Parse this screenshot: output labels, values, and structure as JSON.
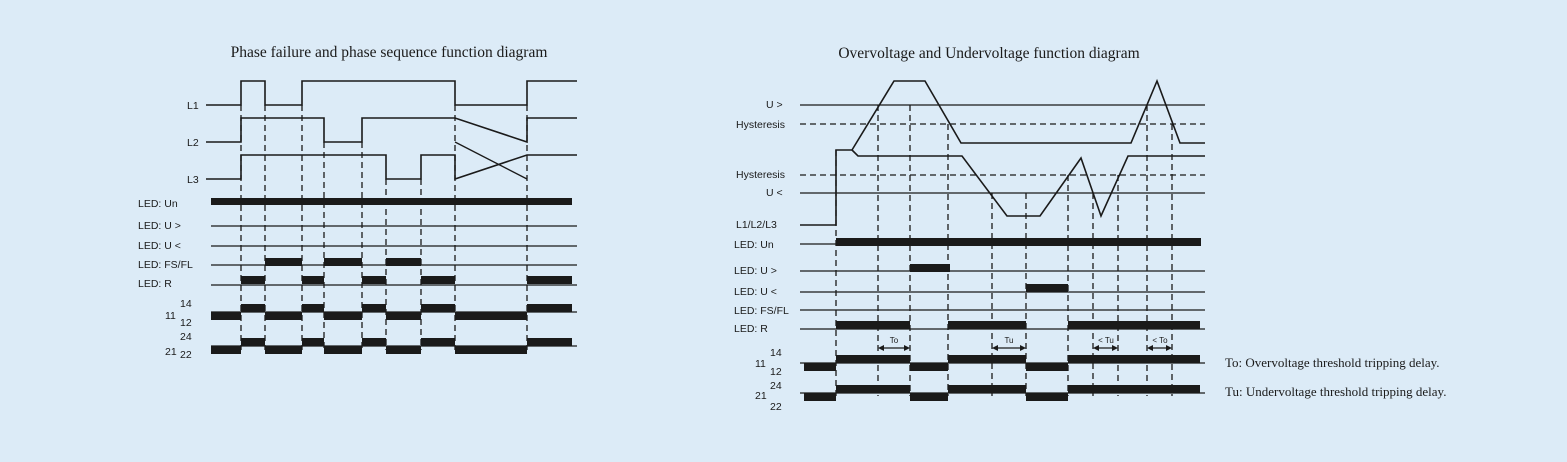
{
  "left_diagram": {
    "title": "Phase failure and phase sequence function diagram",
    "labels": {
      "l1": "L1",
      "l2": "L2",
      "l3": "L3",
      "led_un": "LED: Un",
      "led_uover": "LED:   U >",
      "led_uunder": "LED:   U <",
      "led_fsfl": "LED: FS/FL",
      "led_r": "LED: R",
      "c11": "11",
      "c14": "14",
      "c12": "12",
      "c21": "21",
      "c24": "24",
      "c22": "22"
    }
  },
  "right_diagram": {
    "title": "Overvoltage and Undervoltage function diagram",
    "labels": {
      "uover": "U >",
      "hyst_top": "Hysteresis",
      "hyst_bottom": "Hysteresis",
      "uunder": "U <",
      "l123": "L1/L2/L3",
      "led_un": "LED: Un",
      "led_uover": "LED: U >",
      "led_uunder": "LED: U <",
      "led_fsfl": "LED: FS/FL",
      "led_r": "LED: R",
      "c11": "11",
      "c14": "14",
      "c12": "12",
      "c21": "21",
      "c24": "24",
      "c22": "22"
    },
    "delay_tags": {
      "to1": "To",
      "tu1": "Tu",
      "tu2": "< Tu",
      "to2": "< To"
    }
  },
  "notes": {
    "to": "To: Overvoltage threshold tripping delay.",
    "tu": "Tu: Undervoltage threshold tripping delay."
  }
}
